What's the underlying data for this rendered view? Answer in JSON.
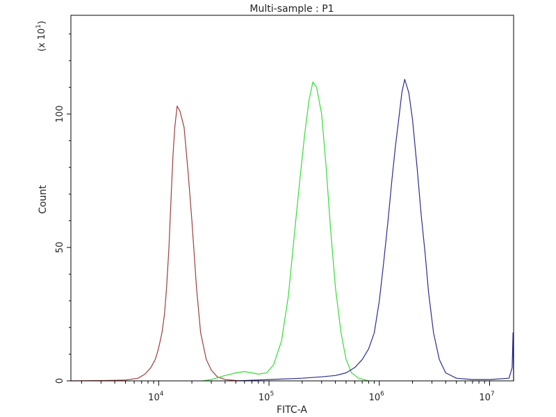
{
  "chart_data": {
    "type": "line",
    "title": "Multi-sample : P1",
    "xlabel": "FITC-A",
    "ylabel": "Count",
    "y_multiplier_label": "(x 10",
    "y_multiplier_exp": "1",
    "y_multiplier_close": ")",
    "x_scale": "log",
    "xlim": [
      1600,
      16500000
    ],
    "ylim": [
      0,
      137
    ],
    "grid": false,
    "x_ticks": [
      {
        "value": 10000,
        "base": "10",
        "exp": "4"
      },
      {
        "value": 100000,
        "base": "10",
        "exp": "5"
      },
      {
        "value": 1000000,
        "base": "10",
        "exp": "6"
      },
      {
        "value": 10000000,
        "base": "10",
        "exp": "7"
      }
    ],
    "y_ticks": [
      {
        "value": 0,
        "label": "0"
      },
      {
        "value": 50,
        "label": "50"
      },
      {
        "value": 100,
        "label": "100"
      }
    ],
    "series": [
      {
        "color": "#a03c3c",
        "x": [
          1600,
          3000,
          5000,
          6500,
          7500,
          8500,
          9300,
          9800,
          10200,
          10700,
          11300,
          11800,
          12400,
          13000,
          13500,
          14000,
          14700,
          15600,
          17000,
          18500,
          20000,
          22000,
          24000,
          27000,
          30000,
          34000,
          40000,
          55000
        ],
        "y": [
          0,
          0.1,
          0.3,
          1,
          2.5,
          5,
          8,
          11,
          14,
          18,
          25,
          35,
          50,
          70,
          85,
          95,
          103,
          101,
          95,
          78,
          60,
          35,
          18,
          8,
          4,
          1.5,
          0.5,
          0
        ]
      },
      {
        "color": "#33dd33",
        "x": [
          25000,
          30000,
          40000,
          50000,
          60000,
          70000,
          80000,
          95000,
          110000,
          130000,
          150000,
          170000,
          190000,
          210000,
          230000,
          250000,
          270000,
          300000,
          330000,
          360000,
          400000,
          450000,
          500000,
          560000,
          650000,
          800000
        ],
        "y": [
          0,
          0.5,
          2,
          3,
          3.5,
          3,
          2.5,
          3,
          6,
          15,
          32,
          55,
          75,
          92,
          105,
          112,
          110,
          100,
          80,
          58,
          35,
          18,
          8,
          3,
          1,
          0
        ]
      },
      {
        "color": "#2b2b90",
        "x": [
          50000,
          100000,
          200000,
          300000,
          400000,
          500000,
          600000,
          700000,
          800000,
          900000,
          1000000,
          1100000,
          1200000,
          1300000,
          1400000,
          1500000,
          1600000,
          1700000,
          1850000,
          2000000,
          2200000,
          2400000,
          2600000,
          2800000,
          3100000,
          3500000,
          4000000,
          5000000,
          7000000,
          10000000,
          15000000,
          16000000,
          16300000,
          16500000
        ],
        "y": [
          0,
          0.5,
          1,
          1.5,
          2,
          3,
          5,
          8,
          12,
          18,
          30,
          45,
          60,
          75,
          88,
          98,
          108,
          113,
          108,
          98,
          80,
          62,
          48,
          33,
          18,
          8,
          3,
          1,
          0.5,
          0.5,
          1,
          5,
          18,
          0
        ]
      }
    ]
  }
}
